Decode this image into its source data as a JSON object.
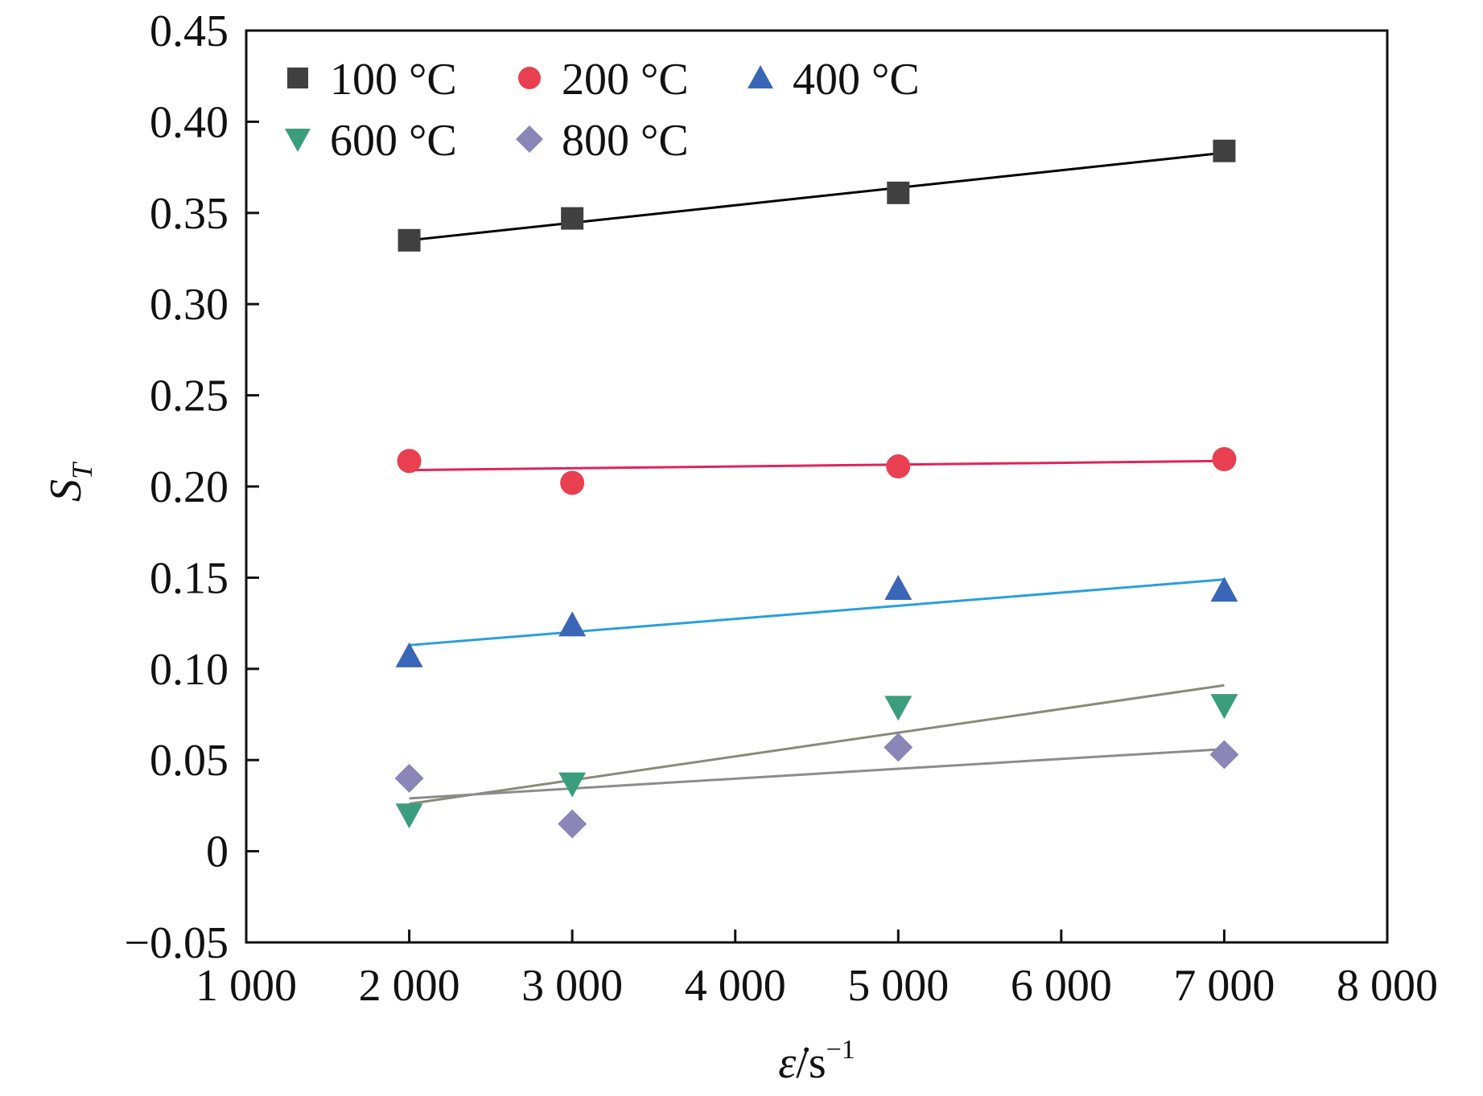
{
  "chart_data": {
    "type": "scatter",
    "xlabel": "ε̇/s⁻¹",
    "ylabel": "S_T",
    "xlim": [
      1000,
      8000
    ],
    "ylim": [
      -0.05,
      0.45
    ],
    "x_ticks": [
      1000,
      2000,
      3000,
      4000,
      5000,
      6000,
      7000,
      8000
    ],
    "x_tick_labels": [
      "1 000",
      "2 000",
      "3 000",
      "4 000",
      "5 000",
      "6 000",
      "7 000",
      "8 000"
    ],
    "y_ticks": [
      -0.05,
      0,
      0.05,
      0.1,
      0.15,
      0.2,
      0.25,
      0.3,
      0.35,
      0.4,
      0.45
    ],
    "y_tick_labels": [
      "−0.05",
      "0",
      "0.05",
      "0.10",
      "0.15",
      "0.20",
      "0.25",
      "0.30",
      "0.35",
      "0.40",
      "0.45"
    ],
    "grid": false,
    "legend_position": "top-left",
    "series": [
      {
        "name": "100 °C",
        "marker": "square",
        "color": "#404040",
        "fit_color": "#000000",
        "x": [
          2000,
          3000,
          5000,
          7000
        ],
        "y": [
          0.335,
          0.347,
          0.361,
          0.384
        ],
        "fit": [
          [
            2000,
            0.335
          ],
          [
            7000,
            0.383
          ]
        ]
      },
      {
        "name": "200 °C",
        "marker": "circle",
        "color": "#e84050",
        "fit_color": "#e0245a",
        "x": [
          2000,
          3000,
          5000,
          7000
        ],
        "y": [
          0.214,
          0.202,
          0.211,
          0.215
        ],
        "fit": [
          [
            2000,
            0.209
          ],
          [
            7000,
            0.214
          ]
        ]
      },
      {
        "name": "400 °C",
        "marker": "triangle-up",
        "color": "#3a66b8",
        "fit_color": "#2a9fdc",
        "x": [
          2000,
          3000,
          5000,
          7000
        ],
        "y": [
          0.107,
          0.124,
          0.144,
          0.143
        ],
        "fit": [
          [
            2000,
            0.113
          ],
          [
            7000,
            0.149
          ]
        ]
      },
      {
        "name": "600 °C",
        "marker": "triangle-down",
        "color": "#3a9e7c",
        "fit_color": "#8a8a7a",
        "x": [
          2000,
          3000,
          5000,
          7000
        ],
        "y": [
          0.02,
          0.037,
          0.079,
          0.08
        ],
        "fit": [
          [
            2000,
            0.026
          ],
          [
            7000,
            0.091
          ]
        ]
      },
      {
        "name": "800 °C",
        "marker": "diamond",
        "color": "#8a86b8",
        "fit_color": "#8c8c8c",
        "x": [
          2000,
          3000,
          5000,
          7000
        ],
        "y": [
          0.04,
          0.015,
          0.057,
          0.053
        ],
        "fit": [
          [
            2000,
            0.029
          ],
          [
            7000,
            0.056
          ]
        ]
      }
    ]
  }
}
